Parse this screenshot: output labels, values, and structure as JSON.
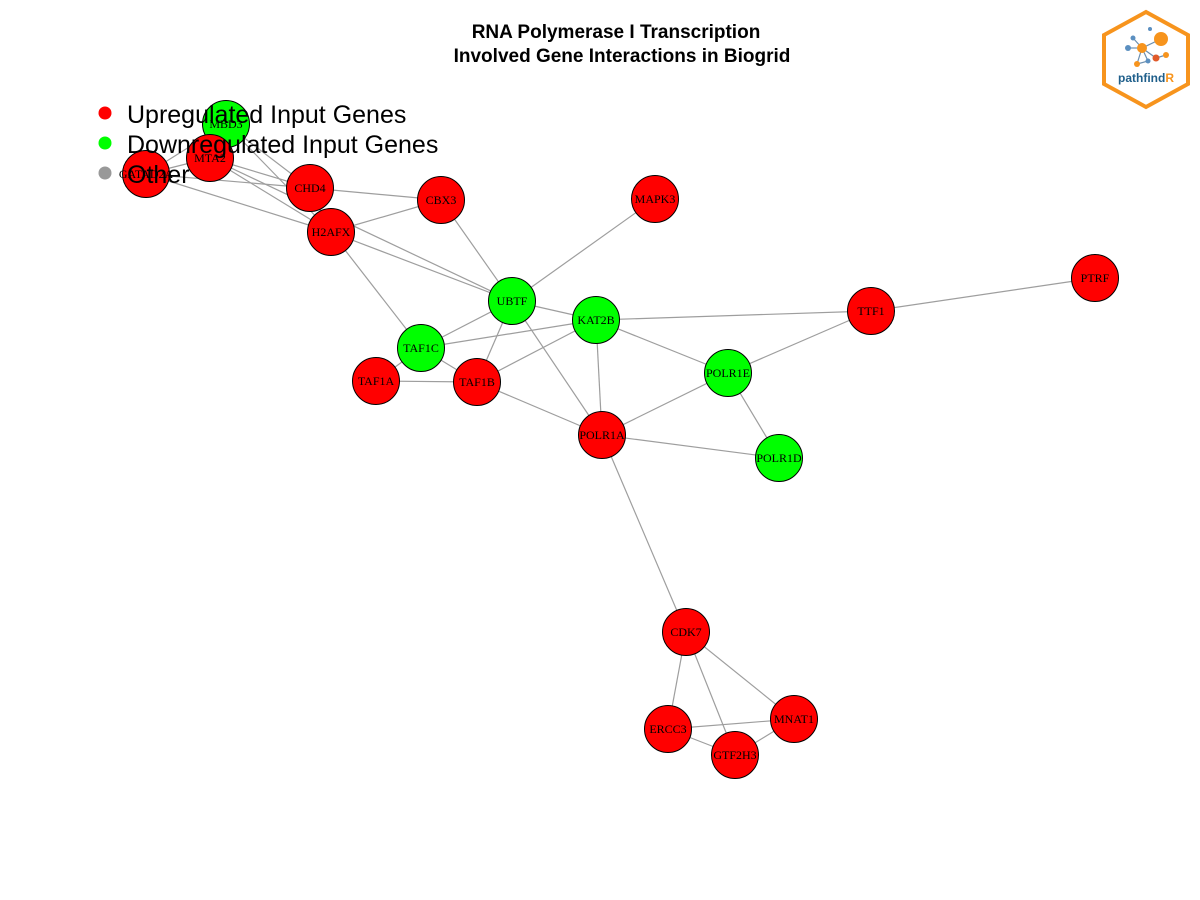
{
  "title": {
    "line1": "RNA Polymerase I Transcription",
    "line2": "Involved Gene Interactions in Biogrid"
  },
  "legend": [
    {
      "label": "Upregulated Input Genes",
      "color": "#ff0000"
    },
    {
      "label": "Downregulated Input Genes",
      "color": "#00ff00"
    },
    {
      "label": "Other",
      "color": "#999999"
    }
  ],
  "logo": {
    "text_main": "pathfind",
    "text_accent": "R",
    "accent_color": "#f7941d",
    "text_color": "#1f5f8b"
  },
  "colors": {
    "up": "#ff0000",
    "down": "#00ff00",
    "edge": "#9e9e9e"
  },
  "nodes": [
    {
      "id": "MBD3",
      "label": "MBD3",
      "type": "down"
    },
    {
      "id": "MTA2",
      "label": "MTA2",
      "type": "up"
    },
    {
      "id": "GATAD2A",
      "label": "GATAD2A",
      "type": "up"
    },
    {
      "id": "CHD4",
      "label": "CHD4",
      "type": "up"
    },
    {
      "id": "CBX3",
      "label": "CBX3",
      "type": "up"
    },
    {
      "id": "MAPK3",
      "label": "MAPK3",
      "type": "up"
    },
    {
      "id": "H2AFX",
      "label": "H2AFX",
      "type": "up"
    },
    {
      "id": "UBTF",
      "label": "UBTF",
      "type": "down"
    },
    {
      "id": "KAT2B",
      "label": "KAT2B",
      "type": "down"
    },
    {
      "id": "TTF1",
      "label": "TTF1",
      "type": "up"
    },
    {
      "id": "PTRF",
      "label": "PTRF",
      "type": "up"
    },
    {
      "id": "TAF1C",
      "label": "TAF1C",
      "type": "down"
    },
    {
      "id": "TAF1A",
      "label": "TAF1A",
      "type": "up"
    },
    {
      "id": "TAF1B",
      "label": "TAF1B",
      "type": "up"
    },
    {
      "id": "POLR1E",
      "label": "POLR1E",
      "type": "down"
    },
    {
      "id": "POLR1A",
      "label": "POLR1A",
      "type": "up"
    },
    {
      "id": "POLR1D",
      "label": "POLR1D",
      "type": "down"
    },
    {
      "id": "CDK7",
      "label": "CDK7",
      "type": "up"
    },
    {
      "id": "ERCC3",
      "label": "ERCC3",
      "type": "up"
    },
    {
      "id": "MNAT1",
      "label": "MNAT1",
      "type": "up"
    },
    {
      "id": "GTF2H3",
      "label": "GTF2H3",
      "type": "up"
    }
  ],
  "edges": [
    [
      "MBD3",
      "MTA2"
    ],
    [
      "MBD3",
      "GATAD2A"
    ],
    [
      "MBD3",
      "CHD4"
    ],
    [
      "MBD3",
      "H2AFX"
    ],
    [
      "MTA2",
      "GATAD2A"
    ],
    [
      "MTA2",
      "CHD4"
    ],
    [
      "MTA2",
      "H2AFX"
    ],
    [
      "MTA2",
      "UBTF"
    ],
    [
      "GATAD2A",
      "CHD4"
    ],
    [
      "GATAD2A",
      "H2AFX"
    ],
    [
      "CHD4",
      "CBX3"
    ],
    [
      "CHD4",
      "H2AFX"
    ],
    [
      "CBX3",
      "H2AFX"
    ],
    [
      "CBX3",
      "UBTF"
    ],
    [
      "MAPK3",
      "UBTF"
    ],
    [
      "H2AFX",
      "UBTF"
    ],
    [
      "H2AFX",
      "TAF1C"
    ],
    [
      "UBTF",
      "KAT2B"
    ],
    [
      "UBTF",
      "TAF1C"
    ],
    [
      "UBTF",
      "TAF1B"
    ],
    [
      "UBTF",
      "POLR1A"
    ],
    [
      "KAT2B",
      "TTF1"
    ],
    [
      "KAT2B",
      "POLR1E"
    ],
    [
      "KAT2B",
      "POLR1A"
    ],
    [
      "KAT2B",
      "TAF1B"
    ],
    [
      "KAT2B",
      "TAF1C"
    ],
    [
      "TTF1",
      "PTRF"
    ],
    [
      "TTF1",
      "POLR1E"
    ],
    [
      "TAF1C",
      "TAF1A"
    ],
    [
      "TAF1C",
      "TAF1B"
    ],
    [
      "TAF1A",
      "TAF1B"
    ],
    [
      "TAF1B",
      "POLR1A"
    ],
    [
      "POLR1E",
      "POLR1A"
    ],
    [
      "POLR1E",
      "POLR1D"
    ],
    [
      "POLR1A",
      "POLR1D"
    ],
    [
      "POLR1A",
      "CDK7"
    ],
    [
      "CDK7",
      "ERCC3"
    ],
    [
      "CDK7",
      "MNAT1"
    ],
    [
      "CDK7",
      "GTF2H3"
    ],
    [
      "ERCC3",
      "MNAT1"
    ],
    [
      "ERCC3",
      "GTF2H3"
    ],
    [
      "MNAT1",
      "GTF2H3"
    ]
  ]
}
